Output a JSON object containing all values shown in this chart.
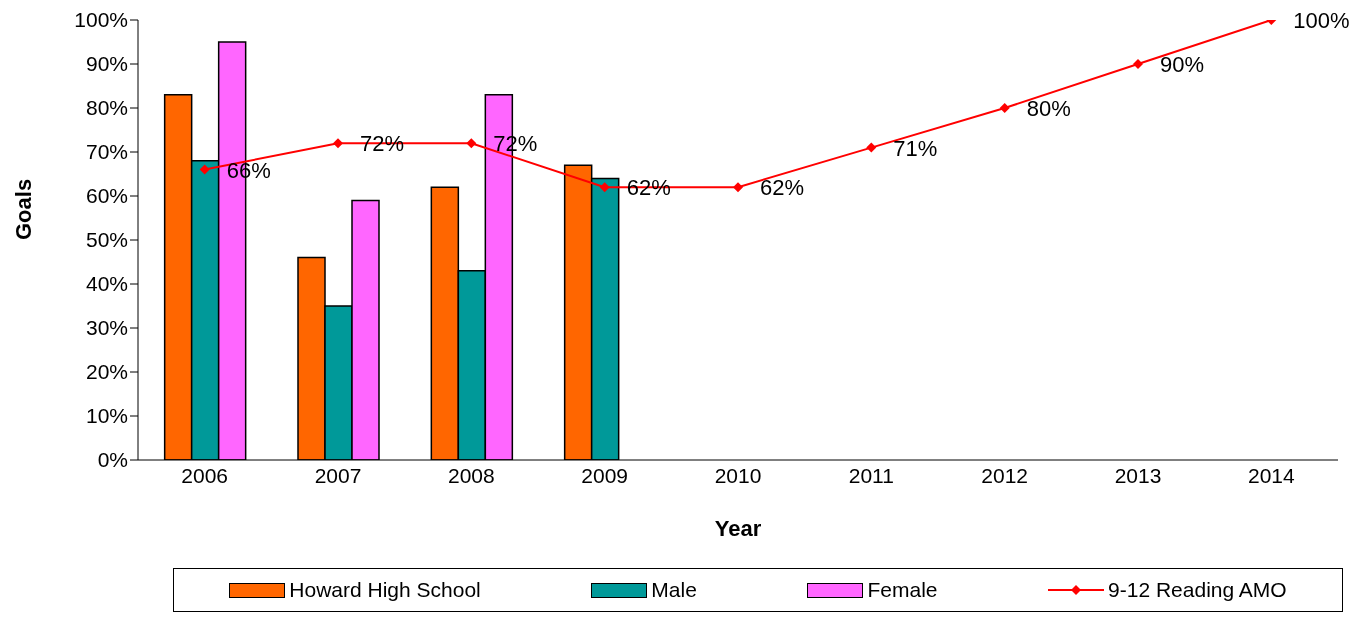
{
  "chart_data": {
    "type": "bar",
    "xlabel": "Year",
    "ylabel": "Goals",
    "categories": [
      "2006",
      "2007",
      "2008",
      "2009",
      "2010",
      "2011",
      "2012",
      "2013",
      "2014"
    ],
    "series": [
      {
        "name": "Howard High School",
        "color": "#ff6600",
        "values": [
          83,
          46,
          62,
          67,
          null,
          null,
          null,
          null,
          null
        ]
      },
      {
        "name": "Male",
        "color": "#009999",
        "values": [
          68,
          35,
          43,
          64,
          null,
          null,
          null,
          null,
          null
        ]
      },
      {
        "name": "Female",
        "color": "#ff66ff",
        "values": [
          95,
          59,
          83,
          null,
          null,
          null,
          null,
          null,
          null
        ]
      },
      {
        "name": "9-12 Reading AMO",
        "type": "line",
        "color": "#ff0000",
        "marker": "diamond",
        "values": [
          66,
          72,
          72,
          62,
          62,
          71,
          80,
          90,
          100
        ],
        "value_labels": [
          "66%",
          "72%",
          "72%",
          "62%",
          "62%",
          "71%",
          "80%",
          "90%",
          "100%"
        ]
      }
    ],
    "ylim": [
      0,
      100
    ],
    "yticks": [
      {
        "value": 0,
        "label": "0%"
      },
      {
        "value": 10,
        "label": "10%"
      },
      {
        "value": 20,
        "label": "20%"
      },
      {
        "value": 30,
        "label": "30%"
      },
      {
        "value": 40,
        "label": "40%"
      },
      {
        "value": 50,
        "label": "50%"
      },
      {
        "value": 60,
        "label": "60%"
      },
      {
        "value": 70,
        "label": "70%"
      },
      {
        "value": 80,
        "label": "80%"
      },
      {
        "value": 90,
        "label": "90%"
      },
      {
        "value": 100,
        "label": "100%"
      }
    ],
    "grid": false,
    "legend": "bottom"
  }
}
